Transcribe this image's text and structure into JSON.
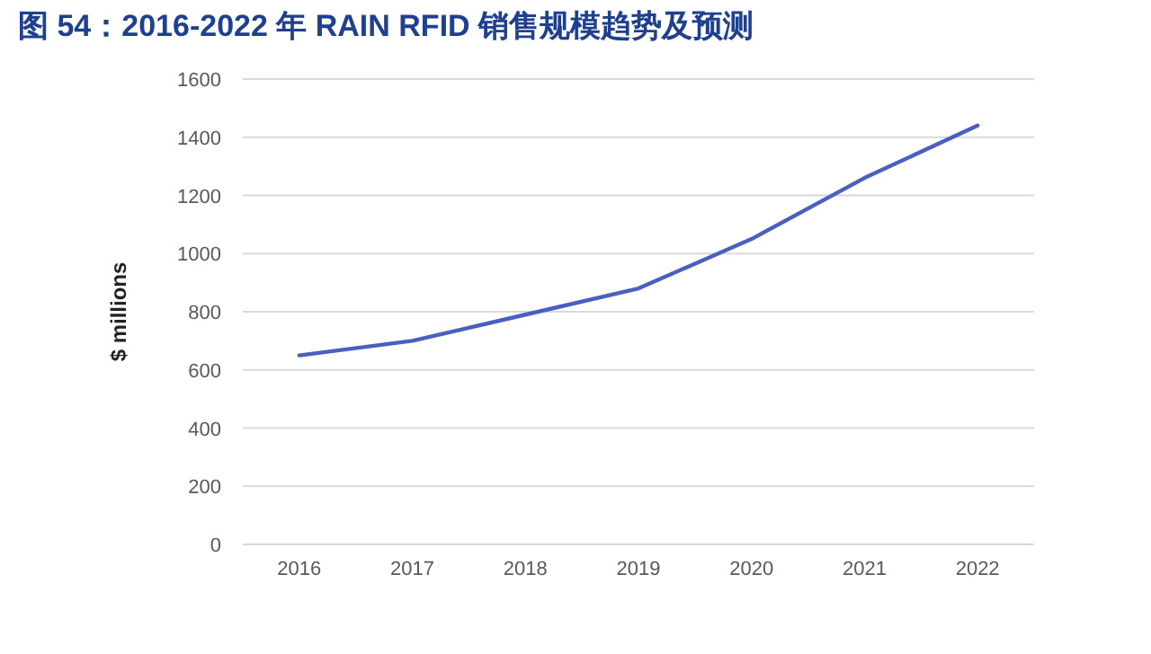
{
  "chart_data": {
    "type": "line",
    "title": "图 54：2016-2022 年 RAIN  RFID 销售规模趋势及预测",
    "ylabel": "$ millions",
    "categories": [
      "2016",
      "2017",
      "2018",
      "2019",
      "2020",
      "2021",
      "2022"
    ],
    "series": [
      {
        "color": "#4a5fbf",
        "values": [
          650,
          700,
          790,
          880,
          1050,
          1260,
          1440
        ]
      }
    ],
    "ylim": [
      0,
      1600
    ],
    "yticks": [
      0,
      200,
      400,
      600,
      800,
      1000,
      1200,
      1400,
      1600
    ],
    "grid": "y"
  }
}
